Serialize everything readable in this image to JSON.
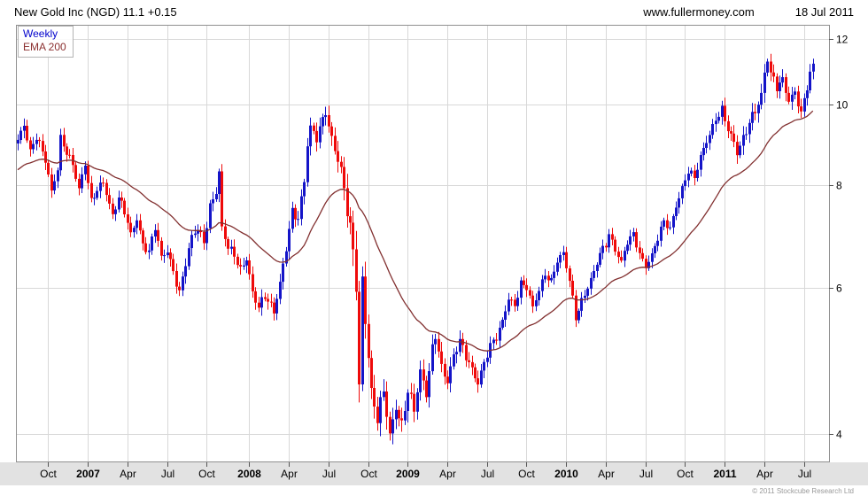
{
  "header": {
    "title": "New Gold Inc (NGD) 11.1 +0.15",
    "site": "www.fullermoney.com",
    "date": "18 Jul 2011"
  },
  "legend": {
    "series_label": "Weekly",
    "ema_label": "EMA 200"
  },
  "footer": {
    "copyright": "© 2011 Stockcube Research Ltd"
  },
  "colors": {
    "up_candle": "#1414c8",
    "down_candle": "#ee0a0a",
    "ema_line": "#823030",
    "grid": "#d8d8d8",
    "frame": "#909090",
    "axis_text": "#000000",
    "band": "#e2e2e2"
  },
  "chart_data": {
    "type": "candlestick",
    "title": "New Gold Inc (NGD) 11.1 +0.15",
    "timeframe": "Weekly",
    "overlay": "EMA 200",
    "scale": "log",
    "ylim": [
      3.7,
      12.5
    ],
    "y_ticks": [
      12,
      10,
      8,
      6,
      4
    ],
    "x_ticks": [
      {
        "week": 10,
        "label": "Oct",
        "year": false
      },
      {
        "week": 23,
        "label": "2007",
        "year": true
      },
      {
        "week": 36,
        "label": "Apr",
        "year": false
      },
      {
        "week": 49,
        "label": "Jul",
        "year": false
      },
      {
        "week": 62,
        "label": "Oct",
        "year": false
      },
      {
        "week": 76,
        "label": "2008",
        "year": true
      },
      {
        "week": 89,
        "label": "Apr",
        "year": false
      },
      {
        "week": 102,
        "label": "Jul",
        "year": false
      },
      {
        "week": 115,
        "label": "Oct",
        "year": false
      },
      {
        "week": 128,
        "label": "2009",
        "year": true
      },
      {
        "week": 141,
        "label": "Apr",
        "year": false
      },
      {
        "week": 154,
        "label": "Jul",
        "year": false
      },
      {
        "week": 167,
        "label": "Oct",
        "year": false
      },
      {
        "week": 180,
        "label": "2010",
        "year": true
      },
      {
        "week": 193,
        "label": "Apr",
        "year": false
      },
      {
        "week": 206,
        "label": "Jul",
        "year": false
      },
      {
        "week": 219,
        "label": "Oct",
        "year": false
      },
      {
        "week": 232,
        "label": "2011",
        "year": true
      },
      {
        "week": 245,
        "label": "Apr",
        "year": false
      },
      {
        "week": 258,
        "label": "Jul",
        "year": false
      }
    ],
    "weeks_total": 262,
    "close_anchors": [
      [
        0,
        9.0
      ],
      [
        2,
        9.45
      ],
      [
        4,
        8.8
      ],
      [
        6,
        9.2
      ],
      [
        9,
        8.55
      ],
      [
        11,
        7.8
      ],
      [
        13,
        8.35
      ],
      [
        14,
        9.1
      ],
      [
        16,
        8.8
      ],
      [
        18,
        8.5
      ],
      [
        20,
        7.9
      ],
      [
        22,
        8.45
      ],
      [
        24,
        7.6
      ],
      [
        26,
        7.9
      ],
      [
        28,
        8.1
      ],
      [
        31,
        7.35
      ],
      [
        33,
        7.7
      ],
      [
        35,
        7.4
      ],
      [
        37,
        6.95
      ],
      [
        39,
        7.3
      ],
      [
        41,
        6.8
      ],
      [
        43,
        6.65
      ],
      [
        45,
        7.1
      ],
      [
        47,
        6.5
      ],
      [
        49,
        6.65
      ],
      [
        51,
        6.3
      ],
      [
        53,
        5.95
      ],
      [
        55,
        6.45
      ],
      [
        57,
        6.9
      ],
      [
        59,
        7.05
      ],
      [
        61,
        6.8
      ],
      [
        63,
        7.55
      ],
      [
        65,
        7.9
      ],
      [
        66,
        8.3
      ],
      [
        67,
        7.1
      ],
      [
        69,
        6.7
      ],
      [
        71,
        6.55
      ],
      [
        73,
        6.3
      ],
      [
        75,
        6.55
      ],
      [
        77,
        5.95
      ],
      [
        79,
        5.7
      ],
      [
        81,
        5.85
      ],
      [
        84,
        5.6
      ],
      [
        86,
        6.1
      ],
      [
        88,
        6.75
      ],
      [
        90,
        7.45
      ],
      [
        92,
        7.25
      ],
      [
        94,
        8.05
      ],
      [
        95,
        8.9
      ],
      [
        96,
        9.35
      ],
      [
        98,
        9.15
      ],
      [
        100,
        9.65
      ],
      [
        101,
        9.9
      ],
      [
        102,
        9.4
      ],
      [
        104,
        8.8
      ],
      [
        106,
        8.25
      ],
      [
        108,
        7.45
      ],
      [
        110,
        6.7
      ],
      [
        111,
        6.15
      ],
      [
        112,
        4.6
      ],
      [
        113,
        6.2
      ],
      [
        114,
        5.5
      ],
      [
        116,
        4.45
      ],
      [
        118,
        4.15
      ],
      [
        120,
        4.5
      ],
      [
        122,
        4.0
      ],
      [
        124,
        4.35
      ],
      [
        126,
        4.1
      ],
      [
        128,
        4.5
      ],
      [
        130,
        4.25
      ],
      [
        132,
        4.75
      ],
      [
        134,
        4.5
      ],
      [
        136,
        5.1
      ],
      [
        137,
        5.3
      ],
      [
        139,
        4.8
      ],
      [
        141,
        4.6
      ],
      [
        143,
        4.95
      ],
      [
        145,
        5.2
      ],
      [
        147,
        5.0
      ],
      [
        149,
        4.8
      ],
      [
        151,
        4.6
      ],
      [
        153,
        4.85
      ],
      [
        155,
        5.1
      ],
      [
        157,
        5.25
      ],
      [
        159,
        5.5
      ],
      [
        161,
        5.85
      ],
      [
        163,
        5.7
      ],
      [
        165,
        6.05
      ],
      [
        167,
        6.0
      ],
      [
        169,
        5.7
      ],
      [
        171,
        6.0
      ],
      [
        173,
        6.25
      ],
      [
        175,
        6.1
      ],
      [
        177,
        6.45
      ],
      [
        179,
        6.6
      ],
      [
        181,
        6.15
      ],
      [
        183,
        5.55
      ],
      [
        185,
        5.8
      ],
      [
        187,
        6.0
      ],
      [
        189,
        6.25
      ],
      [
        191,
        6.6
      ],
      [
        193,
        6.8
      ],
      [
        194,
        7.0
      ],
      [
        196,
        6.7
      ],
      [
        198,
        6.45
      ],
      [
        200,
        6.8
      ],
      [
        202,
        6.95
      ],
      [
        204,
        6.6
      ],
      [
        206,
        6.4
      ],
      [
        208,
        6.6
      ],
      [
        210,
        6.9
      ],
      [
        212,
        7.2
      ],
      [
        214,
        7.05
      ],
      [
        216,
        7.55
      ],
      [
        218,
        7.95
      ],
      [
        220,
        8.35
      ],
      [
        222,
        8.15
      ],
      [
        224,
        8.6
      ],
      [
        226,
        9.0
      ],
      [
        228,
        9.4
      ],
      [
        229,
        9.65
      ],
      [
        231,
        9.9
      ],
      [
        233,
        9.35
      ],
      [
        235,
        8.95
      ],
      [
        236,
        8.7
      ],
      [
        238,
        9.05
      ],
      [
        240,
        9.55
      ],
      [
        242,
        9.9
      ],
      [
        244,
        10.3
      ],
      [
        245,
        10.9
      ],
      [
        246,
        11.35
      ],
      [
        247,
        10.85
      ],
      [
        249,
        10.45
      ],
      [
        251,
        10.7
      ],
      [
        253,
        10.15
      ],
      [
        255,
        10.4
      ],
      [
        257,
        9.75
      ],
      [
        258,
        10.1
      ],
      [
        260,
        10.85
      ],
      [
        261,
        11.1
      ]
    ],
    "vol_anchors": [
      [
        0,
        0.03
      ],
      [
        40,
        0.028
      ],
      [
        60,
        0.032
      ],
      [
        90,
        0.032
      ],
      [
        105,
        0.042
      ],
      [
        111,
        0.075
      ],
      [
        115,
        0.055
      ],
      [
        128,
        0.045
      ],
      [
        145,
        0.035
      ],
      [
        160,
        0.028
      ],
      [
        185,
        0.026
      ],
      [
        210,
        0.026
      ],
      [
        228,
        0.03
      ],
      [
        244,
        0.04
      ],
      [
        248,
        0.034
      ],
      [
        261,
        0.03
      ]
    ],
    "last": {
      "close": 11.1,
      "change": "+0.15"
    }
  }
}
